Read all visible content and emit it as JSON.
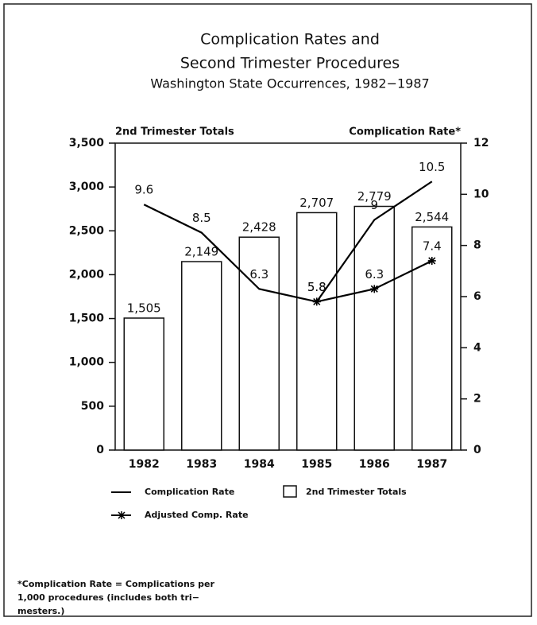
{
  "chart_data": {
    "type": "bar-line",
    "title": "Complication Rates and",
    "subtitle": "Second Trimester Procedures",
    "subtitle2": "Washington State Occurrences, 1982−1987",
    "y_label": "2nd Trimester Totals",
    "y2_label": "Complication Rate*",
    "categories": [
      "1982",
      "1983",
      "1984",
      "1985",
      "1986",
      "1987"
    ],
    "series": [
      {
        "name": "2nd Trimester Totals",
        "kind": "bar",
        "color": "#ffffff",
        "values": [
          1505,
          2149,
          2428,
          2707,
          2779,
          2544
        ],
        "value_labels": [
          "1,505",
          "2,149",
          "2,428",
          "2,707",
          "2,779",
          "2,544"
        ]
      },
      {
        "name": "Complication Rate",
        "kind": "line",
        "axis": "y2",
        "color": "#000000",
        "values": [
          9.6,
          8.5,
          6.3,
          5.8,
          9,
          10.5
        ]
      },
      {
        "name": "Adjusted Comp. Rate",
        "kind": "star-line",
        "axis": "y2",
        "color": "#000000",
        "values": [
          null,
          null,
          null,
          5.8,
          6.3,
          7.4
        ]
      }
    ],
    "ylim": [
      0,
      3500
    ],
    "yticks": [
      0,
      500,
      {
        "value": 1000,
        "label": "1,000"
      },
      {
        "value": 1500,
        "label": "1,500"
      },
      {
        "value": 2000,
        "label": "2,000"
      },
      {
        "value": 2500,
        "label": "2,500"
      },
      {
        "value": 3000,
        "label": "3,000"
      },
      {
        "value": 3500,
        "label": "3,500"
      }
    ],
    "y2lim": [
      0,
      12
    ],
    "y2ticks": [
      0,
      2,
      4,
      6,
      8,
      10,
      12
    ],
    "footnote": [
      "*Complication Rate = Complications per",
      "1,000 procedures (includes both tri−",
      "mesters.)"
    ]
  }
}
